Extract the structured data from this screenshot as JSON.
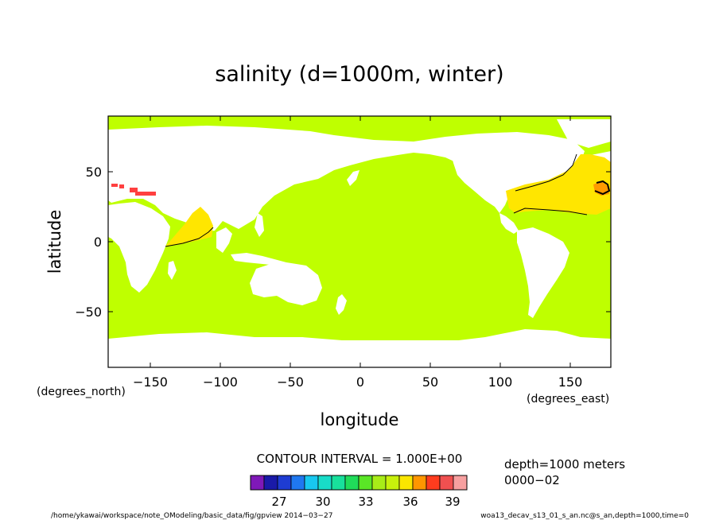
{
  "title": "salinity (d=1000m, winter)",
  "x_axis": {
    "label": "longitude",
    "unit_note": "(degrees_east)",
    "ticks": [
      "−150",
      "−100",
      "−50",
      "0",
      "50",
      "100",
      "150"
    ]
  },
  "y_axis": {
    "label": "latitude",
    "unit_note": "(degrees_north)",
    "ticks": [
      "50",
      "0",
      "−50"
    ]
  },
  "colorbar": {
    "heading": "CONTOUR INTERVAL = 1.000E+00",
    "colors": [
      "#7f18b8",
      "#1a1aa8",
      "#1e3cd2",
      "#1f78f0",
      "#18c8f0",
      "#18dcc8",
      "#18e09c",
      "#20dc5a",
      "#5ae626",
      "#a8ec18",
      "#c8f00c",
      "#fae600",
      "#ff9600",
      "#ff3c1e",
      "#f05050",
      "#f7a0a0"
    ],
    "labels": [
      "27",
      "30",
      "33",
      "36",
      "39"
    ]
  },
  "info": {
    "depth": "depth=1000 meters",
    "time": "0000−02"
  },
  "footer": {
    "path": "/home/ykawai/workspace/note_OModeling/basic_data/fig/gpview  2014−03−27",
    "dataset": "woa13_decav_s13_01_s_an.nc@s_an,depth=1000,time=0"
  },
  "map_colors": {
    "ocean_main": "#bfff00",
    "high_salinity": "#ffe600",
    "very_high": "#ff9a00",
    "extreme": "#ff4040",
    "land": "#ffffff"
  }
}
